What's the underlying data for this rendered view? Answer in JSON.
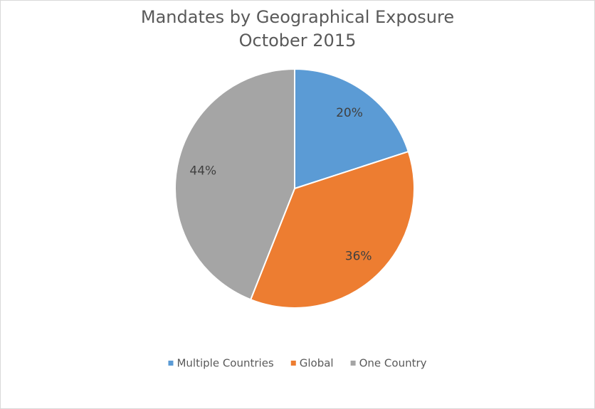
{
  "chart_data": {
    "type": "pie",
    "title": "Mandates by Geographical Exposure",
    "subtitle": "October 2015",
    "categories": [
      "Multiple Countries",
      "Global",
      "One Country"
    ],
    "values": [
      20,
      36,
      44
    ],
    "value_labels": [
      "20%",
      "36%",
      "44%"
    ],
    "colors": [
      "#5b9bd5",
      "#ed7d31",
      "#a5a5a5"
    ],
    "legend": "bottom"
  }
}
